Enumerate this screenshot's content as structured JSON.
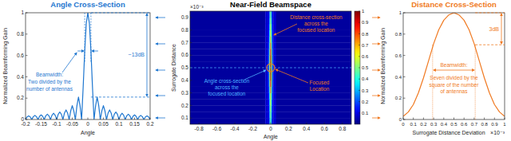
{
  "chart_data": [
    {
      "type": "line",
      "title": "Angle Cross-Section",
      "x_label": "Angle",
      "y_label": "Normalized Beamforming Gain",
      "xlim": [
        -0.2,
        0.2
      ],
      "ylim": [
        0,
        1
      ],
      "xticks": [
        -0.2,
        -0.15,
        -0.1,
        -0.05,
        0,
        0.05,
        0.1,
        0.15,
        0.2
      ],
      "yticks": [
        0,
        0.2,
        0.4,
        0.6,
        0.8,
        1
      ],
      "x": [
        -0.2,
        -0.195,
        -0.19,
        -0.185,
        -0.18,
        -0.175,
        -0.17,
        -0.165,
        -0.16,
        -0.155,
        -0.15,
        -0.145,
        -0.14,
        -0.135,
        -0.13,
        -0.125,
        -0.12,
        -0.115,
        -0.11,
        -0.105,
        -0.1,
        -0.095,
        -0.09,
        -0.085,
        -0.08,
        -0.075,
        -0.07,
        -0.065,
        -0.06,
        -0.055,
        -0.05,
        -0.045,
        -0.04,
        -0.035,
        -0.03,
        -0.025,
        -0.02,
        -0.015,
        -0.01,
        -0.005,
        0,
        0.005,
        0.01,
        0.015,
        0.02,
        0.025,
        0.03,
        0.035,
        0.04,
        0.045,
        0.05,
        0.055,
        0.06,
        0.065,
        0.07,
        0.075,
        0.08,
        0.085,
        0.09,
        0.095,
        0.1,
        0.105,
        0.11,
        0.115,
        0.12,
        0.125,
        0.13,
        0.135,
        0.14,
        0.145,
        0.15,
        0.155,
        0.16,
        0.165,
        0.17,
        0.175,
        0.18,
        0.185,
        0.19,
        0.195,
        0.2
      ],
      "values": [
        0,
        0.024,
        0.034,
        0.024,
        0,
        0.027,
        0.038,
        0.027,
        0,
        0.03,
        0.043,
        0.03,
        0,
        0.035,
        0.05,
        0.035,
        0,
        0.04,
        0.058,
        0.04,
        0,
        0.05,
        0.07,
        0.05,
        0,
        0.06,
        0.09,
        0.06,
        0,
        0.08,
        0.13,
        0.08,
        0,
        0.13,
        0.21,
        0.13,
        0,
        0.3,
        0.64,
        0.9,
        1,
        0.9,
        0.64,
        0.3,
        0,
        0.13,
        0.21,
        0.13,
        0,
        0.08,
        0.13,
        0.08,
        0,
        0.06,
        0.09,
        0.06,
        0,
        0.05,
        0.07,
        0.05,
        0,
        0.04,
        0.058,
        0.04,
        0,
        0.035,
        0.05,
        0.035,
        0,
        0.03,
        0.043,
        0.03,
        0,
        0.027,
        0.038,
        0.027,
        0,
        0.024,
        0.034,
        0.024,
        0
      ],
      "color": "#1f77d0",
      "beamwidth": [
        -0.01,
        0.01
      ],
      "beamwidth_text": [
        "Beamwidth:",
        "Two divided by the",
        "number of antennas"
      ],
      "levels": [
        1,
        0.21
      ],
      "level_text": "~13dB"
    },
    {
      "type": "heatmap",
      "title": "Near-Field Beamspace",
      "x_label": "Angle",
      "y_label": "Surrogate Distance",
      "y_exponent": "×10⁻³",
      "xlim": [
        -0.9,
        0.9
      ],
      "ylim": [
        0.05,
        0.95
      ],
      "xticks": [
        -0.8,
        -0.6,
        -0.4,
        -0.2,
        0,
        0.2,
        0.4,
        0.6,
        0.8
      ],
      "yticks": [
        0.1,
        0.2,
        0.3,
        0.4,
        0.5,
        0.6,
        0.7,
        0.8,
        0.9
      ],
      "x_edges": [
        -0.9,
        -0.06,
        -0.03,
        -0.015,
        -0.005,
        0.005,
        0.015,
        0.03,
        0.06,
        0.9
      ],
      "y_edges": [
        0.05,
        0.1,
        0.15,
        0.2,
        0.25,
        0.3,
        0.35,
        0.4,
        0.45,
        0.5,
        0.55,
        0.6,
        0.65,
        0.7,
        0.75,
        0.8,
        0.85,
        0.9,
        0.95
      ],
      "cells": [
        [
          0.03,
          0.08,
          0.09,
          0.25,
          0.45,
          0.25,
          0.09,
          0.08,
          0.03
        ],
        [
          0.03,
          0.08,
          0.1,
          0.28,
          0.5,
          0.28,
          0.1,
          0.08,
          0.03
        ],
        [
          0.03,
          0.08,
          0.11,
          0.3,
          0.55,
          0.3,
          0.11,
          0.08,
          0.03
        ],
        [
          0.03,
          0.08,
          0.12,
          0.33,
          0.6,
          0.33,
          0.12,
          0.08,
          0.03
        ],
        [
          0.03,
          0.08,
          0.14,
          0.37,
          0.68,
          0.37,
          0.14,
          0.08,
          0.03
        ],
        [
          0.03,
          0.08,
          0.16,
          0.43,
          0.78,
          0.43,
          0.16,
          0.08,
          0.03
        ],
        [
          0.03,
          0.08,
          0.18,
          0.48,
          0.88,
          0.48,
          0.18,
          0.08,
          0.03
        ],
        [
          0.03,
          0.08,
          0.19,
          0.53,
          0.97,
          0.53,
          0.19,
          0.08,
          0.03
        ],
        [
          0.03,
          0.08,
          0.2,
          0.55,
          1.0,
          0.55,
          0.2,
          0.08,
          0.03
        ],
        [
          0.03,
          0.08,
          0.2,
          0.55,
          1.0,
          0.55,
          0.2,
          0.08,
          0.03
        ],
        [
          0.03,
          0.08,
          0.19,
          0.53,
          0.96,
          0.53,
          0.19,
          0.08,
          0.03
        ],
        [
          0.03,
          0.08,
          0.18,
          0.48,
          0.88,
          0.48,
          0.18,
          0.08,
          0.03
        ],
        [
          0.03,
          0.08,
          0.16,
          0.44,
          0.8,
          0.44,
          0.16,
          0.08,
          0.03
        ],
        [
          0.03,
          0.08,
          0.14,
          0.4,
          0.72,
          0.4,
          0.14,
          0.08,
          0.03
        ],
        [
          0.03,
          0.08,
          0.13,
          0.36,
          0.65,
          0.36,
          0.13,
          0.08,
          0.03
        ],
        [
          0.03,
          0.08,
          0.12,
          0.32,
          0.58,
          0.32,
          0.12,
          0.08,
          0.03
        ],
        [
          0.03,
          0.08,
          0.1,
          0.29,
          0.52,
          0.29,
          0.1,
          0.08,
          0.03
        ],
        [
          0.03,
          0.08,
          0.1,
          0.26,
          0.48,
          0.26,
          0.1,
          0.08,
          0.03
        ]
      ],
      "colorbar_lim": [
        0,
        1
      ],
      "colorbar_ticks": [
        0.1,
        0.2,
        0.3,
        0.4,
        0.5,
        0.6,
        0.7,
        0.8,
        0.9,
        1
      ],
      "focused_location": [
        0,
        0.5
      ],
      "focused_text": [
        "Focused",
        "Location"
      ],
      "distance_text": [
        "Distance cross-section",
        "across the",
        "focused location"
      ],
      "angle_text": [
        "Angle cross-section",
        "across the",
        "focused location"
      ]
    },
    {
      "type": "line",
      "title": "Distance Cross-Section",
      "x_label": "Surrogate Distance Deviation",
      "x_exponent": "×10⁻³",
      "y_label": "Normalized Beamforming Gain",
      "xlim": [
        0,
        1
      ],
      "ylim": [
        0,
        1
      ],
      "xticks": [
        0,
        0.1,
        0.2,
        0.3,
        0.4,
        0.5,
        0.6,
        0.7,
        0.8,
        0.9,
        1
      ],
      "yticks": [
        0,
        0.2,
        0.4,
        0.6,
        0.8,
        1
      ],
      "x": [
        0,
        0.05,
        0.1,
        0.15,
        0.2,
        0.25,
        0.3,
        0.35,
        0.4,
        0.45,
        0.5,
        0.55,
        0.6,
        0.65,
        0.7,
        0.75,
        0.8,
        0.85,
        0.9,
        0.95,
        1
      ],
      "values": [
        0.03,
        0.07,
        0.14,
        0.25,
        0.39,
        0.55,
        0.71,
        0.84,
        0.93,
        0.98,
        1,
        0.98,
        0.93,
        0.84,
        0.71,
        0.55,
        0.39,
        0.25,
        0.14,
        0.07,
        0.03
      ],
      "color": "#f07a22",
      "beamwidth": [
        0.29,
        0.71
      ],
      "beamwidth_text": [
        "Beamwidth:",
        "Seven divided by the",
        "square of the number",
        "of antennas"
      ],
      "levels": [
        1,
        0.7
      ],
      "level_text": "3dB"
    }
  ]
}
